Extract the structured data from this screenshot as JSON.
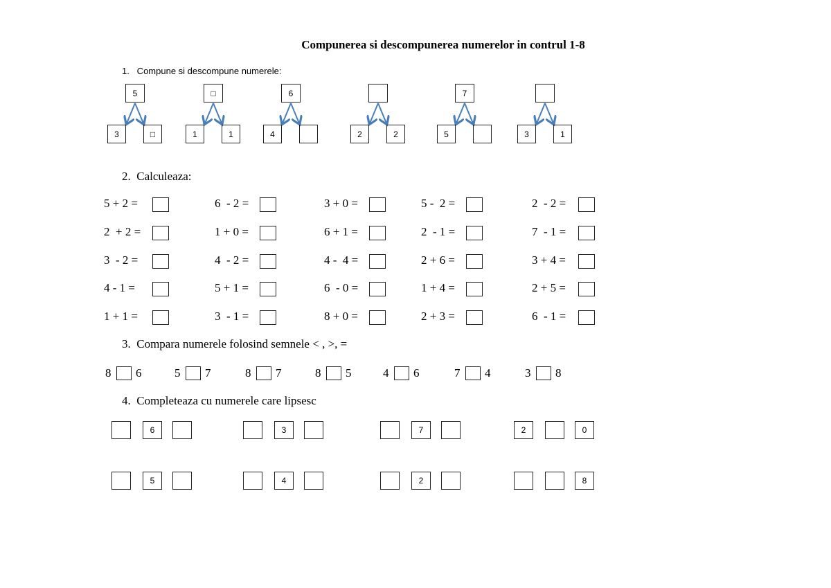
{
  "title": "Compunerea si descompunerea numerelor in contrul 1-8",
  "section1": {
    "heading": "1.   Compune si descompune numerele:",
    "trees": [
      {
        "top": "5",
        "left": "3",
        "right": "□"
      },
      {
        "top": "□",
        "left": "1",
        "right": "1"
      },
      {
        "top": "6",
        "left": "4",
        "right": ""
      },
      {
        "top": "",
        "left": "2",
        "right": "2"
      },
      {
        "top": "7",
        "left": "5",
        "right": ""
      },
      {
        "top": "",
        "left": "3",
        "right": "1"
      }
    ],
    "arrow_color": "#4a7ebb"
  },
  "section2": {
    "heading": "2.  Calculeaza:",
    "rows": [
      [
        "5 + 2 =",
        "6  - 2 =",
        "3 + 0 =",
        "5 -  2 =",
        "2  - 2 ="
      ],
      [
        "2  + 2 =",
        "1 + 0 =",
        "6 + 1 =",
        "2  - 1 =",
        "7  - 1 ="
      ],
      [
        "3  - 2 =",
        "4  - 2 =",
        "4 -  4 =",
        "2 + 6 =",
        "3 + 4 ="
      ],
      [
        "4 - 1 =",
        "5 + 1 =",
        "6  - 0 =",
        "1 + 4 =",
        "2 + 5 ="
      ],
      [
        "1 + 1 =",
        "3  - 1 =",
        "8 + 0 =",
        "2 + 3 =",
        "6  - 1 ="
      ]
    ]
  },
  "section3": {
    "heading": "3.  Compara numerele folosind semnele < , >, =",
    "pairs": [
      [
        "8",
        "6"
      ],
      [
        "5",
        "7"
      ],
      [
        "8",
        "7"
      ],
      [
        "8",
        "5"
      ],
      [
        "4",
        "6"
      ],
      [
        "7",
        "4"
      ],
      [
        "3",
        "8"
      ]
    ]
  },
  "section4": {
    "heading": "4.  Completeaza cu numerele care lipsesc",
    "rows": [
      [
        [
          "",
          "6",
          ""
        ],
        [
          "",
          "3",
          ""
        ],
        [
          "",
          "7",
          ""
        ],
        [
          "2",
          "",
          "0"
        ]
      ],
      [
        [
          "",
          "5",
          ""
        ],
        [
          "",
          "4",
          ""
        ],
        [
          "",
          "2",
          ""
        ],
        [
          "",
          "",
          "8"
        ]
      ]
    ]
  }
}
